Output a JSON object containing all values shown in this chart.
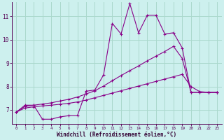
{
  "xlabel": "Windchill (Refroidissement éolien,°C)",
  "background_color": "#cdf0ee",
  "grid_color": "#aad8cc",
  "line_color": "#880088",
  "xlim": [
    -0.5,
    23.5
  ],
  "ylim": [
    6.4,
    11.6
  ],
  "yticks": [
    7,
    8,
    9,
    10,
    11
  ],
  "xticks": [
    0,
    1,
    2,
    3,
    4,
    5,
    6,
    7,
    8,
    9,
    10,
    11,
    12,
    13,
    14,
    15,
    16,
    17,
    18,
    19,
    20,
    21,
    22,
    23
  ],
  "series1": [
    6.9,
    7.2,
    7.2,
    6.6,
    6.6,
    6.7,
    6.75,
    6.75,
    7.8,
    7.85,
    8.5,
    10.7,
    10.25,
    11.55,
    10.3,
    11.05,
    11.05,
    10.25,
    10.3,
    9.65,
    7.75,
    7.75,
    7.75,
    7.75
  ],
  "series2": [
    6.9,
    7.15,
    7.2,
    7.25,
    7.3,
    7.38,
    7.45,
    7.55,
    7.68,
    7.82,
    8.02,
    8.25,
    8.47,
    8.68,
    8.88,
    9.1,
    9.3,
    9.5,
    9.72,
    9.2,
    7.75,
    7.75,
    7.75,
    7.75
  ],
  "series3": [
    6.9,
    7.08,
    7.13,
    7.17,
    7.2,
    7.24,
    7.28,
    7.34,
    7.42,
    7.52,
    7.62,
    7.72,
    7.82,
    7.92,
    8.02,
    8.12,
    8.22,
    8.32,
    8.42,
    8.52,
    8.0,
    7.78,
    7.75,
    7.75
  ]
}
